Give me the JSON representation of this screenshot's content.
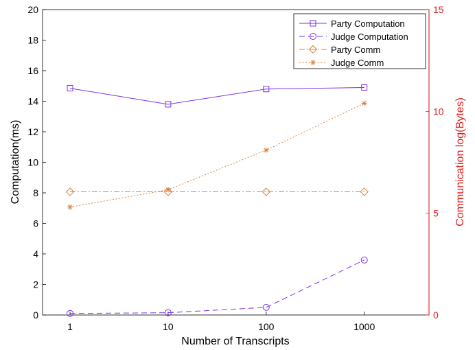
{
  "chart_data": {
    "type": "line",
    "x_scale": "log",
    "categories": [
      "1",
      "10",
      "100",
      "1000"
    ],
    "x": [
      1,
      10,
      100,
      1000
    ],
    "xlabel": "Number of Transcripts",
    "ylabel_left": "Computation(ms)",
    "ylabel_right": "Communication log(Bytes)",
    "ylim_left": [
      0,
      20
    ],
    "ylim_right": [
      0,
      15
    ],
    "yticks_left": [
      "0",
      "2",
      "4",
      "6",
      "8",
      "10",
      "12",
      "14",
      "16",
      "18",
      "20"
    ],
    "yticks_right": [
      "0",
      "5",
      "10",
      "15"
    ],
    "grid": false,
    "legend_position": "top-right",
    "series": [
      {
        "name": "Party Computation",
        "axis": "left",
        "values": [
          14.85,
          13.8,
          14.8,
          14.9
        ],
        "color": "#7B2FE8",
        "marker": "square",
        "dash": "solid"
      },
      {
        "name": "Judge Computation",
        "axis": "left",
        "values": [
          0.1,
          0.15,
          0.5,
          3.6
        ],
        "color": "#7B2FE8",
        "marker": "circle",
        "dash": "dashed"
      },
      {
        "name": "Party Comm",
        "axis": "right",
        "values": [
          6.05,
          6.05,
          6.05,
          6.05
        ],
        "color": "#D9813F",
        "marker": "diamond",
        "dash": "dashdot"
      },
      {
        "name": "Judge Comm",
        "axis": "right",
        "values": [
          5.3,
          6.15,
          8.1,
          10.4
        ],
        "color": "#D9813F",
        "marker": "asterisk",
        "dash": "dotted"
      }
    ],
    "colors": {
      "left_axis": "#000000",
      "right_axis": "#E0201B"
    }
  }
}
